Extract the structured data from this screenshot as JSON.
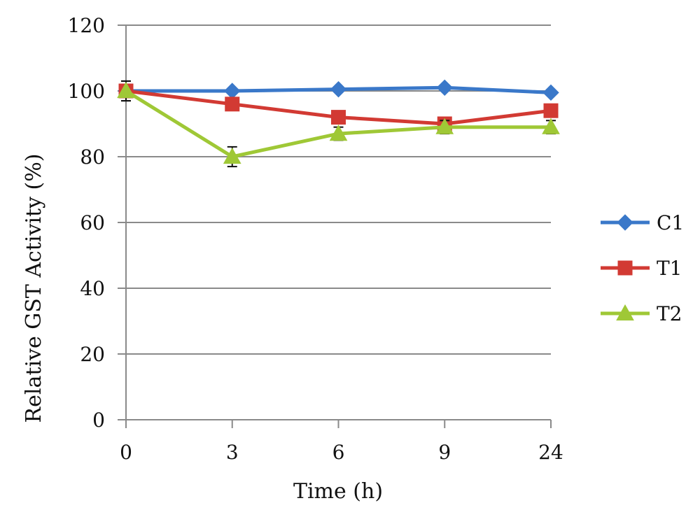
{
  "chart_data": {
    "type": "line",
    "title": "",
    "xlabel": "Time (h)",
    "ylabel": "Relative GST Activity (%)",
    "categories": [
      "0",
      "3",
      "6",
      "9",
      "24"
    ],
    "ylim": [
      0,
      120
    ],
    "yticks": [
      0,
      20,
      40,
      60,
      80,
      100,
      120
    ],
    "grid": true,
    "legend_position": "right",
    "series": [
      {
        "name": "C1",
        "color": "#3a78c9",
        "marker": "diamond",
        "values": [
          100,
          100,
          100.5,
          101,
          99.5
        ],
        "errors": [
          0,
          0,
          0,
          0,
          0
        ]
      },
      {
        "name": "T1",
        "color": "#d23a33",
        "marker": "square",
        "values": [
          100,
          96,
          92,
          90,
          94
        ],
        "errors": [
          3,
          0,
          0,
          0,
          0
        ]
      },
      {
        "name": "T2",
        "color": "#9fc836",
        "marker": "triangle",
        "values": [
          100,
          80,
          87,
          89,
          89
        ],
        "errors": [
          3,
          3,
          2,
          2,
          2
        ]
      }
    ]
  }
}
